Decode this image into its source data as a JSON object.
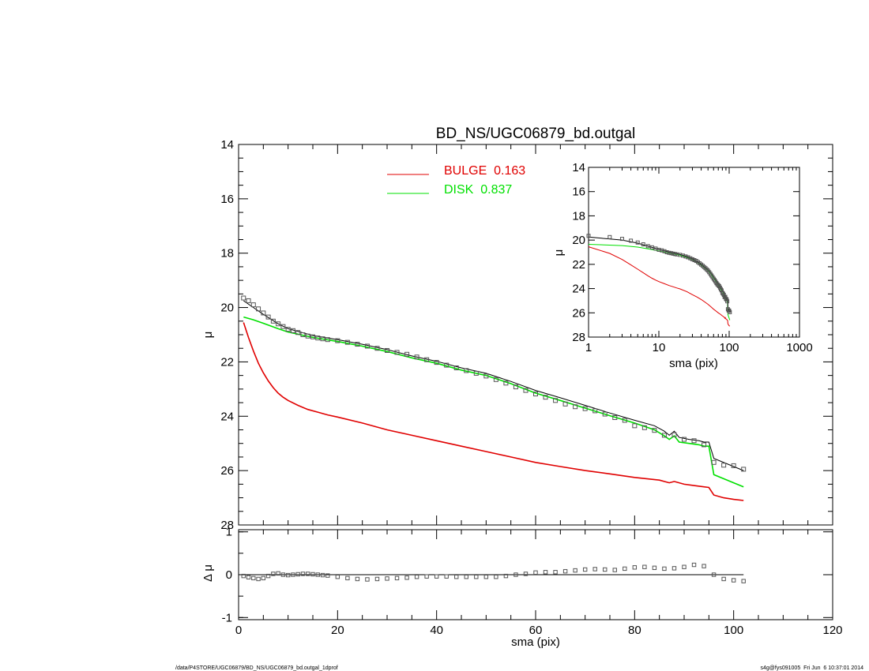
{
  "chart_data": [
    {
      "type": "line",
      "panel": "main-profile",
      "title": "BD_NS/UGC06879_bd.outgal",
      "xlabel": "",
      "ylabel": "μ",
      "xlim": [
        0,
        120
      ],
      "ylim": [
        28,
        14
      ],
      "y_inverted": true,
      "yticks": [
        "14",
        "16",
        "18",
        "20",
        "22",
        "24",
        "26",
        "28"
      ],
      "legend": [
        {
          "label": "BULGE  0.163",
          "color": "#e00000"
        },
        {
          "label": "DISK  0.837",
          "color": "#00e000"
        }
      ],
      "legend_placement": "top-center",
      "observed_points": {
        "x": [
          1,
          2,
          3,
          4,
          5,
          6,
          7,
          8,
          9,
          10,
          11,
          12,
          13,
          14,
          15,
          16,
          17,
          18,
          20,
          22,
          24,
          26,
          28,
          30,
          32,
          34,
          36,
          38,
          40,
          42,
          44,
          46,
          48,
          50,
          52,
          54,
          56,
          58,
          60,
          62,
          64,
          66,
          68,
          70,
          72,
          74,
          76,
          78,
          80,
          82,
          84,
          86,
          88,
          90,
          92,
          94,
          96,
          98,
          100,
          102
        ],
        "y": [
          19.65,
          19.75,
          19.9,
          20.05,
          20.2,
          20.35,
          20.5,
          20.6,
          20.7,
          20.8,
          20.85,
          20.92,
          21.0,
          21.05,
          21.08,
          21.12,
          21.15,
          21.18,
          21.22,
          21.28,
          21.35,
          21.42,
          21.5,
          21.58,
          21.65,
          21.72,
          21.82,
          21.92,
          22.02,
          22.12,
          22.22,
          22.32,
          22.42,
          22.52,
          22.65,
          22.78,
          22.92,
          23.05,
          23.18,
          23.3,
          23.42,
          23.55,
          23.65,
          23.72,
          23.8,
          23.92,
          24.05,
          24.15,
          24.35,
          24.42,
          24.52,
          24.7,
          24.68,
          24.85,
          24.9,
          25.05,
          25.7,
          25.8,
          25.82,
          25.95
        ]
      },
      "series": [
        {
          "name": "BULGE",
          "color": "#e00000",
          "x": [
            1,
            2,
            3,
            4,
            5,
            6,
            7,
            8,
            9,
            10,
            12,
            14,
            16,
            18,
            20,
            25,
            30,
            35,
            40,
            45,
            50,
            55,
            60,
            65,
            70,
            75,
            80,
            85,
            87,
            88,
            90,
            92,
            95,
            96,
            98,
            100,
            102
          ],
          "y": [
            20.55,
            21.1,
            21.6,
            22.05,
            22.4,
            22.7,
            22.95,
            23.15,
            23.3,
            23.42,
            23.6,
            23.75,
            23.85,
            23.95,
            24.03,
            24.25,
            24.5,
            24.7,
            24.9,
            25.1,
            25.3,
            25.5,
            25.7,
            25.85,
            26.0,
            26.12,
            26.25,
            26.35,
            26.45,
            26.4,
            26.5,
            26.55,
            26.62,
            26.9,
            27.0,
            27.06,
            27.1
          ]
        },
        {
          "name": "DISK",
          "color": "#00e000",
          "x": [
            1,
            3,
            5,
            8,
            10,
            15,
            20,
            25,
            30,
            35,
            40,
            45,
            50,
            55,
            60,
            65,
            70,
            75,
            80,
            84,
            86,
            87,
            88,
            89,
            91,
            93,
            94,
            95,
            96,
            100,
            102
          ],
          "y": [
            20.35,
            20.45,
            20.58,
            20.78,
            20.9,
            21.1,
            21.25,
            21.42,
            21.62,
            21.85,
            22.05,
            22.3,
            22.5,
            22.8,
            23.15,
            23.42,
            23.7,
            23.98,
            24.25,
            24.5,
            24.72,
            24.85,
            24.72,
            24.95,
            25.0,
            25.05,
            25.1,
            25.1,
            26.15,
            26.45,
            26.6
          ]
        },
        {
          "name": "model",
          "color": "#000000",
          "x": [
            1,
            3,
            5,
            8,
            10,
            15,
            20,
            25,
            30,
            35,
            40,
            45,
            50,
            55,
            60,
            65,
            70,
            75,
            80,
            84,
            86,
            87,
            88,
            89,
            91,
            93,
            94,
            95,
            96,
            100,
            102
          ],
          "y": [
            19.75,
            20.0,
            20.25,
            20.6,
            20.78,
            21.03,
            21.18,
            21.35,
            21.55,
            21.78,
            21.98,
            22.22,
            22.42,
            22.72,
            23.05,
            23.32,
            23.6,
            23.88,
            24.15,
            24.35,
            24.55,
            24.7,
            24.55,
            24.78,
            24.85,
            24.9,
            24.95,
            24.95,
            25.55,
            25.85,
            26.0
          ]
        }
      ]
    },
    {
      "type": "scatter",
      "panel": "residuals",
      "xlabel": "sma (pix)",
      "ylabel": "Δ μ",
      "xlim": [
        0,
        120
      ],
      "ylim": [
        -1.05,
        1.05
      ],
      "xticks": [
        "0",
        "20",
        "40",
        "60",
        "80",
        "100",
        "120"
      ],
      "yticks": [
        "1",
        "0",
        "-1"
      ],
      "points": {
        "x": [
          1,
          2,
          3,
          4,
          5,
          6,
          7,
          8,
          9,
          10,
          11,
          12,
          13,
          14,
          15,
          16,
          17,
          18,
          20,
          22,
          24,
          26,
          28,
          30,
          32,
          34,
          36,
          38,
          40,
          42,
          44,
          46,
          48,
          50,
          52,
          54,
          56,
          58,
          60,
          62,
          64,
          66,
          68,
          70,
          72,
          74,
          76,
          78,
          80,
          82,
          84,
          86,
          88,
          90,
          92,
          94,
          96,
          98,
          100,
          102
        ],
        "y": [
          -0.03,
          -0.06,
          -0.08,
          -0.1,
          -0.08,
          -0.03,
          0.02,
          0.03,
          0.0,
          -0.01,
          0.0,
          0.01,
          0.02,
          0.02,
          0.01,
          0.0,
          -0.01,
          -0.02,
          -0.05,
          -0.08,
          -0.1,
          -0.11,
          -0.1,
          -0.09,
          -0.08,
          -0.07,
          -0.05,
          -0.04,
          -0.04,
          -0.04,
          -0.05,
          -0.05,
          -0.05,
          -0.05,
          -0.05,
          -0.03,
          0.0,
          0.02,
          0.05,
          0.06,
          0.06,
          0.08,
          0.1,
          0.12,
          0.13,
          0.12,
          0.11,
          0.14,
          0.17,
          0.18,
          0.16,
          0.14,
          0.15,
          0.18,
          0.23,
          0.2,
          0.0,
          -0.1,
          -0.13,
          -0.15
        ]
      }
    },
    {
      "type": "line",
      "panel": "inset-log",
      "xlabel": "sma (pix)",
      "ylabel": "μ",
      "x_scale": "log",
      "xlim": [
        1,
        1000
      ],
      "ylim": [
        28,
        14
      ],
      "y_inverted": true,
      "xticks": [
        "1",
        "10",
        "100",
        "1000"
      ],
      "yticks": [
        "14",
        "16",
        "18",
        "20",
        "22",
        "24",
        "26",
        "28"
      ]
    }
  ],
  "footer": {
    "left": "/data/P4STORE/UGC06879/BD_NS/UGC06879_bd.outgal_1dprof",
    "right": "s4g@fys091005  Fri Jun  6 10:37:01 2014"
  }
}
